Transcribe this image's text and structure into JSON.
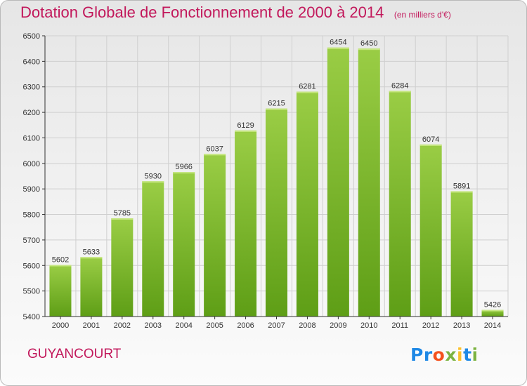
{
  "title": "Dotation Globale de Fonctionnement de 2000 à 2014",
  "unit_note": "(en milliers d'€)",
  "commune": "GUYANCOURT",
  "logo": {
    "text": "Proxiti",
    "letters": [
      {
        "ch": "P",
        "color": "#1e88e5"
      },
      {
        "ch": "r",
        "color": "#1e88e5"
      },
      {
        "ch": "o",
        "color": "#f4511e"
      },
      {
        "ch": "x",
        "color": "#7cb342"
      },
      {
        "ch": "i",
        "color": "#fbc02d"
      },
      {
        "ch": "t",
        "color": "#1e88e5"
      },
      {
        "ch": "i",
        "color": "#7cb342"
      }
    ]
  },
  "colors": {
    "accent": "#c2185b",
    "bar_top": "#9acd45",
    "bar_bottom": "#5e9e16",
    "grid": "#cfcfcf",
    "axis": "#333333"
  },
  "chart_data": {
    "type": "bar",
    "title": "Dotation Globale de Fonctionnement de 2000 à 2014",
    "subtitle": "(en milliers d'€)",
    "xlabel": "",
    "ylabel": "",
    "categories": [
      "2000",
      "2001",
      "2002",
      "2003",
      "2004",
      "2005",
      "2006",
      "2007",
      "2008",
      "2009",
      "2010",
      "2011",
      "2012",
      "2013",
      "2014"
    ],
    "values": [
      5602,
      5633,
      5785,
      5930,
      5966,
      6037,
      6129,
      6215,
      6281,
      6454,
      6450,
      6284,
      6074,
      5891,
      5426
    ],
    "ylim": [
      5400,
      6500
    ],
    "yticks": [
      5400,
      5500,
      5600,
      5700,
      5800,
      5900,
      6000,
      6100,
      6200,
      6300,
      6400,
      6500
    ],
    "grid": true,
    "data_labels": true
  }
}
